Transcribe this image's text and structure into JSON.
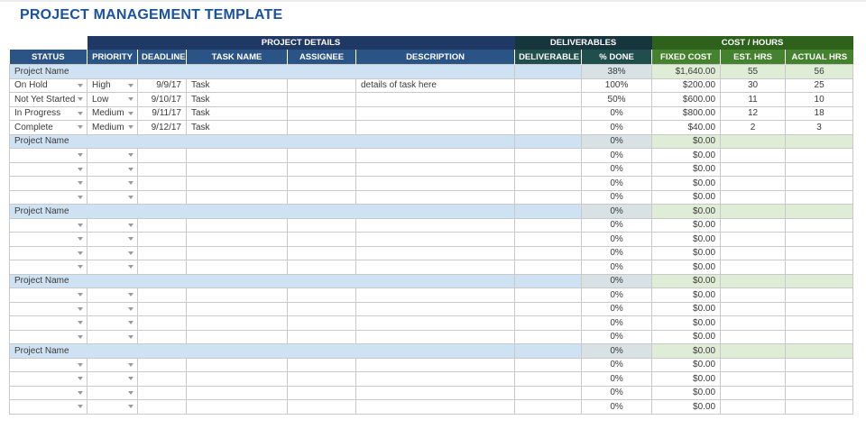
{
  "page_title": "PROJECT MANAGEMENT TEMPLATE",
  "colors": {
    "title_blue": "#1a52a0",
    "group_navy": "#1f3864",
    "group_teal": "#17353d",
    "group_green": "#2d611c",
    "header_blue": "#2b5486",
    "header_teal": "#1f4e4d",
    "header_green": "#45822d",
    "summary_blue": "#cfe2f3",
    "summary_cyan": "#d8e1e4",
    "summary_green": "#e0edd6",
    "grid_border": "#c9c9c9"
  },
  "table": {
    "group_headers": [
      {
        "label": "",
        "span": 1,
        "variant": "blank"
      },
      {
        "label": "PROJECT DETAILS",
        "span": 5,
        "variant": "navy"
      },
      {
        "label": "DELIVERABLES",
        "span": 2,
        "variant": "teal"
      },
      {
        "label": "COST / HOURS",
        "span": 3,
        "variant": "green"
      }
    ],
    "columns": [
      {
        "key": "status",
        "label": "STATUS",
        "width": 86,
        "variant": "blue",
        "align": "left",
        "dropdown": true
      },
      {
        "key": "priority",
        "label": "PRIORITY",
        "width": 56,
        "variant": "blue",
        "align": "left",
        "dropdown": true
      },
      {
        "key": "deadline",
        "label": "DEADLINE",
        "width": 54,
        "variant": "blue",
        "align": "right",
        "dropdown": false
      },
      {
        "key": "task",
        "label": "TASK NAME",
        "width": 112,
        "variant": "blue",
        "align": "left",
        "dropdown": false
      },
      {
        "key": "assignee",
        "label": "ASSIGNEE",
        "width": 76,
        "variant": "blue",
        "align": "left",
        "dropdown": false
      },
      {
        "key": "description",
        "label": "DESCRIPTION",
        "width": 176,
        "variant": "blue",
        "align": "left",
        "dropdown": false
      },
      {
        "key": "deliverable",
        "label": "DELIVERABLE",
        "width": 74,
        "variant": "teal",
        "align": "left",
        "dropdown": false
      },
      {
        "key": "pct_done",
        "label": "% DONE",
        "width": 78,
        "variant": "teal",
        "align": "center",
        "dropdown": false
      },
      {
        "key": "fixed_cost",
        "label": "FIXED COST",
        "width": 76,
        "variant": "green",
        "align": "right",
        "dropdown": false
      },
      {
        "key": "est_hrs",
        "label": "EST. HRS",
        "width": 72,
        "variant": "green",
        "align": "center",
        "dropdown": false
      },
      {
        "key": "actual_hrs",
        "label": "ACTUAL HRS",
        "width": 75,
        "variant": "green",
        "align": "center",
        "dropdown": false
      }
    ],
    "sections": [
      {
        "title": "Project Name",
        "summary": {
          "pct_done": "38%",
          "fixed_cost": "$1,640.00",
          "est_hrs": "55",
          "actual_hrs": "56"
        },
        "rows": [
          {
            "status": "On Hold",
            "priority": "High",
            "deadline": "9/9/17",
            "task": "Task",
            "assignee": "",
            "description": "details of task here",
            "deliverable": "",
            "pct_done": "100%",
            "fixed_cost": "$200.00",
            "est_hrs": "30",
            "actual_hrs": "25"
          },
          {
            "status": "Not Yet Started",
            "priority": "Low",
            "deadline": "9/10/17",
            "task": "Task",
            "assignee": "",
            "description": "",
            "deliverable": "",
            "pct_done": "50%",
            "fixed_cost": "$600.00",
            "est_hrs": "11",
            "actual_hrs": "10"
          },
          {
            "status": "In Progress",
            "priority": "Medium",
            "deadline": "9/11/17",
            "task": "Task",
            "assignee": "",
            "description": "",
            "deliverable": "",
            "pct_done": "0%",
            "fixed_cost": "$800.00",
            "est_hrs": "12",
            "actual_hrs": "18"
          },
          {
            "status": "Complete",
            "priority": "Medium",
            "deadline": "9/12/17",
            "task": "Task",
            "assignee": "",
            "description": "",
            "deliverable": "",
            "pct_done": "0%",
            "fixed_cost": "$40.00",
            "est_hrs": "2",
            "actual_hrs": "3"
          }
        ]
      },
      {
        "title": "Project Name",
        "summary": {
          "pct_done": "0%",
          "fixed_cost": "$0.00",
          "est_hrs": "",
          "actual_hrs": ""
        },
        "rows": [
          {
            "status": "",
            "priority": "",
            "deadline": "",
            "task": "",
            "assignee": "",
            "description": "",
            "deliverable": "",
            "pct_done": "0%",
            "fixed_cost": "$0.00",
            "est_hrs": "",
            "actual_hrs": ""
          },
          {
            "status": "",
            "priority": "",
            "deadline": "",
            "task": "",
            "assignee": "",
            "description": "",
            "deliverable": "",
            "pct_done": "0%",
            "fixed_cost": "$0.00",
            "est_hrs": "",
            "actual_hrs": ""
          },
          {
            "status": "",
            "priority": "",
            "deadline": "",
            "task": "",
            "assignee": "",
            "description": "",
            "deliverable": "",
            "pct_done": "0%",
            "fixed_cost": "$0.00",
            "est_hrs": "",
            "actual_hrs": ""
          },
          {
            "status": "",
            "priority": "",
            "deadline": "",
            "task": "",
            "assignee": "",
            "description": "",
            "deliverable": "",
            "pct_done": "0%",
            "fixed_cost": "$0.00",
            "est_hrs": "",
            "actual_hrs": ""
          }
        ]
      },
      {
        "title": "Project Name",
        "summary": {
          "pct_done": "0%",
          "fixed_cost": "$0.00",
          "est_hrs": "",
          "actual_hrs": ""
        },
        "rows": [
          {
            "status": "",
            "priority": "",
            "deadline": "",
            "task": "",
            "assignee": "",
            "description": "",
            "deliverable": "",
            "pct_done": "0%",
            "fixed_cost": "$0.00",
            "est_hrs": "",
            "actual_hrs": ""
          },
          {
            "status": "",
            "priority": "",
            "deadline": "",
            "task": "",
            "assignee": "",
            "description": "",
            "deliverable": "",
            "pct_done": "0%",
            "fixed_cost": "$0.00",
            "est_hrs": "",
            "actual_hrs": ""
          },
          {
            "status": "",
            "priority": "",
            "deadline": "",
            "task": "",
            "assignee": "",
            "description": "",
            "deliverable": "",
            "pct_done": "0%",
            "fixed_cost": "$0.00",
            "est_hrs": "",
            "actual_hrs": ""
          },
          {
            "status": "",
            "priority": "",
            "deadline": "",
            "task": "",
            "assignee": "",
            "description": "",
            "deliverable": "",
            "pct_done": "0%",
            "fixed_cost": "$0.00",
            "est_hrs": "",
            "actual_hrs": ""
          }
        ]
      },
      {
        "title": "Project Name",
        "summary": {
          "pct_done": "0%",
          "fixed_cost": "$0.00",
          "est_hrs": "",
          "actual_hrs": ""
        },
        "rows": [
          {
            "status": "",
            "priority": "",
            "deadline": "",
            "task": "",
            "assignee": "",
            "description": "",
            "deliverable": "",
            "pct_done": "0%",
            "fixed_cost": "$0.00",
            "est_hrs": "",
            "actual_hrs": ""
          },
          {
            "status": "",
            "priority": "",
            "deadline": "",
            "task": "",
            "assignee": "",
            "description": "",
            "deliverable": "",
            "pct_done": "0%",
            "fixed_cost": "$0.00",
            "est_hrs": "",
            "actual_hrs": ""
          },
          {
            "status": "",
            "priority": "",
            "deadline": "",
            "task": "",
            "assignee": "",
            "description": "",
            "deliverable": "",
            "pct_done": "0%",
            "fixed_cost": "$0.00",
            "est_hrs": "",
            "actual_hrs": ""
          },
          {
            "status": "",
            "priority": "",
            "deadline": "",
            "task": "",
            "assignee": "",
            "description": "",
            "deliverable": "",
            "pct_done": "0%",
            "fixed_cost": "$0.00",
            "est_hrs": "",
            "actual_hrs": ""
          }
        ]
      },
      {
        "title": "Project Name",
        "summary": {
          "pct_done": "0%",
          "fixed_cost": "$0.00",
          "est_hrs": "",
          "actual_hrs": ""
        },
        "rows": [
          {
            "status": "",
            "priority": "",
            "deadline": "",
            "task": "",
            "assignee": "",
            "description": "",
            "deliverable": "",
            "pct_done": "0%",
            "fixed_cost": "$0.00",
            "est_hrs": "",
            "actual_hrs": ""
          },
          {
            "status": "",
            "priority": "",
            "deadline": "",
            "task": "",
            "assignee": "",
            "description": "",
            "deliverable": "",
            "pct_done": "0%",
            "fixed_cost": "$0.00",
            "est_hrs": "",
            "actual_hrs": ""
          },
          {
            "status": "",
            "priority": "",
            "deadline": "",
            "task": "",
            "assignee": "",
            "description": "",
            "deliverable": "",
            "pct_done": "0%",
            "fixed_cost": "$0.00",
            "est_hrs": "",
            "actual_hrs": ""
          },
          {
            "status": "",
            "priority": "",
            "deadline": "",
            "task": "",
            "assignee": "",
            "description": "",
            "deliverable": "",
            "pct_done": "0%",
            "fixed_cost": "$0.00",
            "est_hrs": "",
            "actual_hrs": ""
          }
        ]
      }
    ]
  }
}
